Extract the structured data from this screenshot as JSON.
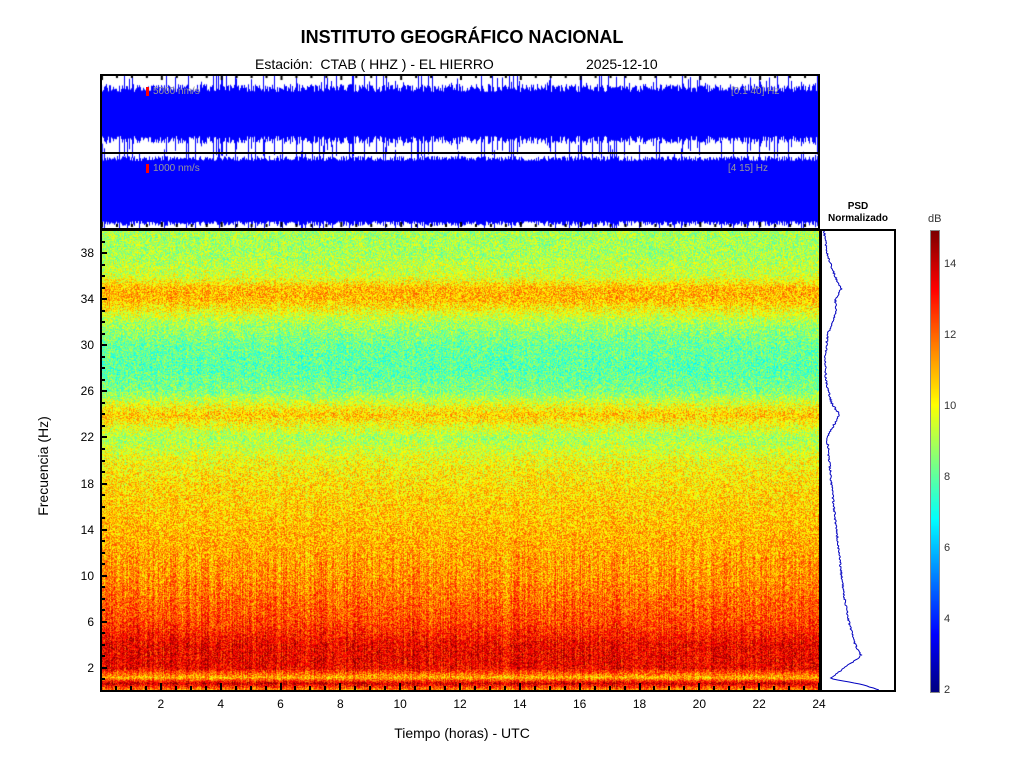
{
  "header": {
    "title": "INSTITUTO GEOGRÁFICO NACIONAL",
    "station": "Estación:  CTAB ( HHZ ) - EL HIERRO",
    "date": "2025-12-10"
  },
  "seismograms": [
    {
      "scale_label": "5000 nm/s",
      "band_label": "[0.1 40] Hz",
      "color": "#0000ff"
    },
    {
      "scale_label": "1000 nm/s",
      "band_label": "[4 15] Hz",
      "color": "#0000ff"
    }
  ],
  "psd_panel": {
    "title_line1": "PSD",
    "title_line2": "Normalizado",
    "profile": {
      "freq_hz": [
        0,
        0.5,
        1,
        2,
        3,
        4,
        6,
        8,
        10,
        14,
        18,
        22,
        23,
        24,
        25,
        27,
        29,
        31,
        33,
        34,
        35,
        36,
        38,
        40
      ],
      "normalized": [
        0.9,
        0.6,
        0.1,
        0.35,
        0.6,
        0.5,
        0.4,
        0.33,
        0.28,
        0.2,
        0.12,
        0.05,
        0.15,
        0.25,
        0.12,
        0.03,
        0.02,
        0.06,
        0.2,
        0.18,
        0.28,
        0.18,
        0.05,
        0.0
      ]
    }
  },
  "colorbar": {
    "label": "dB",
    "min": 2,
    "max": 15,
    "ticks": [
      "2",
      "4",
      "6",
      "8",
      "10",
      "12",
      "14"
    ],
    "colormap": "jet"
  },
  "chart_data": {
    "type": "heatmap",
    "xlabel": "Tiempo (horas) - UTC",
    "ylabel": "Frecuencia  (Hz)",
    "xlim": [
      0,
      24
    ],
    "ylim": [
      0,
      40
    ],
    "xticks": [
      "2",
      "4",
      "6",
      "8",
      "10",
      "12",
      "14",
      "16",
      "18",
      "20",
      "22",
      "24"
    ],
    "yticks": [
      "2",
      "6",
      "10",
      "14",
      "18",
      "22",
      "26",
      "30",
      "34",
      "38"
    ],
    "mean_db_by_freq": {
      "freq_hz": [
        0,
        0.7,
        1.2,
        2,
        4,
        6,
        8,
        10,
        14,
        18,
        20,
        22,
        24,
        26,
        28,
        30,
        32,
        34,
        35,
        36,
        38,
        40
      ],
      "db": [
        11,
        14,
        11,
        13.5,
        13.5,
        12.5,
        12,
        11.5,
        11,
        10.5,
        10,
        9,
        10.8,
        8.5,
        8,
        8.2,
        9,
        11,
        11,
        9.5,
        9,
        9
      ]
    }
  }
}
